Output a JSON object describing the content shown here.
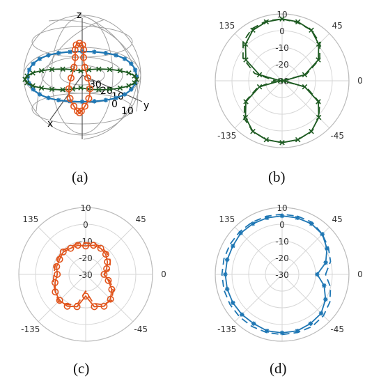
{
  "figure": {
    "panel_labels": [
      "(a)",
      "(b)",
      "(c)",
      "(d)"
    ]
  },
  "chart_data": [
    {
      "type": "3d-pattern",
      "axis_labels": {
        "x": "x",
        "y": "y",
        "z": "z"
      },
      "radial_ticks": [
        "30",
        "20",
        "10",
        "0",
        "10"
      ],
      "series": [
        {
          "color": "#1f77b4",
          "marker": "asterisk"
        },
        {
          "color": "#1e5b22",
          "marker": "x"
        },
        {
          "color": "#e1541c",
          "marker": "circle"
        }
      ]
    },
    {
      "type": "polar",
      "r_ticks": [
        10,
        0,
        -10,
        -20,
        -30
      ],
      "r_range": [
        -30,
        10
      ],
      "angle_ticks": [
        45,
        0,
        -45,
        -135,
        135
      ],
      "color": "#1e5b22",
      "marker": "x",
      "angles": [
        0,
        15,
        30,
        45,
        60,
        75,
        90,
        105,
        120,
        135,
        150,
        165,
        180,
        195,
        210,
        225,
        240,
        255,
        270,
        285,
        300,
        315,
        330,
        345
      ],
      "measured": [
        -29,
        -16,
        -5,
        1,
        5,
        6.5,
        7,
        6.5,
        5,
        1,
        -5,
        -16,
        -29,
        -16,
        -5,
        1,
        5,
        6.5,
        7,
        6.5,
        5,
        1,
        -5,
        -16
      ],
      "simulated": [
        -30,
        -15,
        -4,
        2,
        5,
        6,
        7,
        7,
        6,
        3,
        -3,
        -13,
        -26,
        -15,
        -4,
        2,
        5,
        6.5,
        7,
        6.5,
        5,
        1,
        -4,
        -15
      ]
    },
    {
      "type": "polar",
      "r_ticks": [
        10,
        0,
        -10,
        -20,
        -30
      ],
      "r_range": [
        -30,
        10
      ],
      "angle_ticks": [
        45,
        0,
        -45,
        -135,
        135
      ],
      "color": "#e1541c",
      "marker": "circle",
      "angles": [
        0,
        15,
        30,
        45,
        60,
        75,
        90,
        105,
        120,
        135,
        150,
        165,
        180,
        195,
        210,
        225,
        240,
        255,
        270,
        285,
        300,
        315,
        330,
        345
      ],
      "measured": [
        -19,
        -17,
        -15,
        -13,
        -12,
        -12,
        -13,
        -12,
        -12,
        -11,
        -12,
        -12,
        -13,
        -11,
        -9,
        -8,
        -8,
        -10,
        -17,
        -10,
        -8,
        -9,
        -12,
        -16
      ],
      "simulated": [
        -19,
        -15,
        -13,
        -12,
        -11,
        -11,
        -11,
        -11,
        -11,
        -10,
        -11,
        -11,
        -11,
        -10,
        -9,
        -7,
        -9,
        -12,
        -20,
        -12,
        -9,
        -8,
        -11,
        -15
      ]
    },
    {
      "type": "polar",
      "r_ticks": [
        10,
        0,
        -10,
        -20,
        -30
      ],
      "r_range": [
        -30,
        10
      ],
      "angle_ticks": [
        45,
        0,
        -45,
        -135,
        135
      ],
      "color": "#1f77b4",
      "marker": "asterisk",
      "angles": [
        0,
        15,
        30,
        45,
        60,
        75,
        90,
        105,
        120,
        135,
        150,
        165,
        180,
        195,
        210,
        225,
        240,
        255,
        270,
        285,
        300,
        315,
        330,
        345
      ],
      "measured": [
        -9,
        -3,
        1,
        4,
        5,
        5,
        5,
        5,
        5,
        5,
        4,
        4,
        4,
        4,
        4,
        4,
        4,
        5,
        5,
        5,
        4,
        3,
        0,
        -4
      ],
      "simulated": [
        -4,
        0,
        2,
        4,
        6,
        6,
        6,
        6,
        6,
        6,
        6,
        6,
        6,
        6,
        6,
        6,
        6,
        6,
        6,
        6,
        6,
        5,
        3,
        0
      ]
    }
  ]
}
